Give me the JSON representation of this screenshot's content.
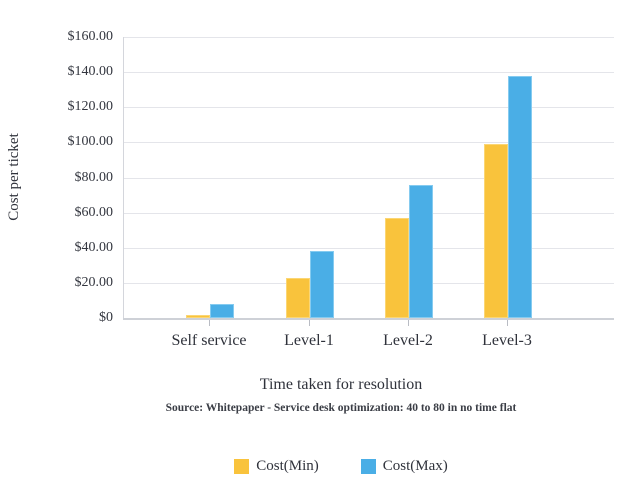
{
  "chart_data": {
    "type": "bar",
    "title": "",
    "categories": [
      "Self service",
      "Level-1",
      "Level-2",
      "Level-3"
    ],
    "series": [
      {
        "name": "Cost(Min)",
        "color": "#f9c33c",
        "border_color": "#fbd674",
        "values": [
          2,
          23,
          57,
          99
        ]
      },
      {
        "name": "Cost(Max)",
        "color": "#4aaee6",
        "border_color": "#85cbf0",
        "values": [
          8,
          38,
          76,
          138
        ]
      }
    ],
    "xlabel": "Time taken for resolution",
    "ylabel": "Cost per ticket",
    "source": "Source: Whitepaper - Service desk optimization: 40 to 80 in no time flat",
    "ylim": [
      0,
      160
    ],
    "y_tick_step": 20,
    "y_tick_labels": [
      "$160.00",
      "$140.00",
      "$120.00",
      "$100.00",
      "$80.00",
      "$60.00",
      "$40.00",
      "$20.00",
      "$0"
    ],
    "grid": true,
    "legend_position": "bottom",
    "colors": {
      "gridline": "#e4e5ea",
      "axis_line": "#ced1d7",
      "text": "#2f323b"
    }
  }
}
